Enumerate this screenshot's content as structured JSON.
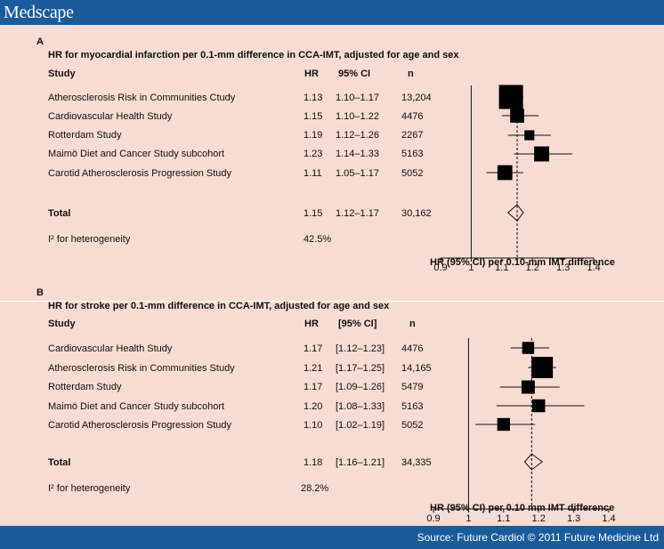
{
  "header": {
    "logo": "Medscape"
  },
  "footer": {
    "source": "Source: Future Cardiol © 2011 Future Medicine Ltd"
  },
  "chart_data": [
    {
      "type": "forest",
      "panel": "A",
      "title": "HR for myocardial infarction per 0.1-mm difference in CCA-IMT, adjusted for age and sex",
      "columns": {
        "study": "Study",
        "hr": "HR",
        "ci": "95% CI",
        "n": "n"
      },
      "studies": [
        {
          "name": "Atherosclerosis Risk in Communities Ctudy",
          "hr": 1.13,
          "lo": 1.1,
          "hi": 1.17,
          "hr_text": "1.13",
          "ci_text": "1.10–1.17",
          "n": "13,204",
          "n_value": 13204
        },
        {
          "name": "Cardiovascular Health Study",
          "hr": 1.15,
          "lo": 1.1,
          "hi": 1.22,
          "hr_text": "1.15",
          "ci_text": "1.10–1.22",
          "n": "4476",
          "n_value": 4476
        },
        {
          "name": "Rotterdam Study",
          "hr": 1.19,
          "lo": 1.12,
          "hi": 1.26,
          "hr_text": "1.19",
          "ci_text": "1.12–1.26",
          "n": "2267",
          "n_value": 2267
        },
        {
          "name": "Maimö Diet and Cancer Study subcohort",
          "hr": 1.23,
          "lo": 1.14,
          "hi": 1.33,
          "hr_text": "1.23",
          "ci_text": "1.14–1.33",
          "n": "5163",
          "n_value": 5163
        },
        {
          "name": "Carotid Atherosclerosis Progression Study",
          "hr": 1.11,
          "lo": 1.05,
          "hi": 1.17,
          "hr_text": "1.11",
          "ci_text": "1.05–1.17",
          "n": "5052",
          "n_value": 5052
        }
      ],
      "total": {
        "name": "Total",
        "hr": 1.15,
        "lo": 1.12,
        "hi": 1.17,
        "hr_text": "1.15",
        "ci_text": "1.12–1.17",
        "n": "30,162"
      },
      "heterogeneity": {
        "label": "I² for heterogeneity",
        "value": "42.5%"
      },
      "xlabel": "HR (95% CI) per 0.10-mm IMT difference",
      "xlim": [
        0.9,
        1.4
      ],
      "xticks": [
        "0.9",
        "1",
        "1.1",
        "1.2",
        "1.3",
        "1.4"
      ],
      "reference": 1.0
    },
    {
      "type": "forest",
      "panel": "B",
      "title": "HR for stroke per 0.1-mm difference in CCA-IMT, adjusted for age and sex",
      "columns": {
        "study": "Study",
        "hr": "HR",
        "ci": "[95% CI]",
        "n": "n"
      },
      "studies": [
        {
          "name": "Cardiovascular Health Study",
          "hr": 1.17,
          "lo": 1.12,
          "hi": 1.23,
          "hr_text": "1.17",
          "ci_text": "[1.12–1.23]",
          "n": "4476",
          "n_value": 4476
        },
        {
          "name": "Atherosclerosis Risk in Communities Study",
          "hr": 1.21,
          "lo": 1.17,
          "hi": 1.25,
          "hr_text": "1.21",
          "ci_text": "[1.17–1.25]",
          "n": "14,165",
          "n_value": 14165
        },
        {
          "name": "Rotterdam Study",
          "hr": 1.17,
          "lo": 1.09,
          "hi": 1.26,
          "hr_text": "1.17",
          "ci_text": "[1.09–1.26]",
          "n": "5479",
          "n_value": 5479
        },
        {
          "name": "Maimö Diet and Cancer Study subcohort",
          "hr": 1.2,
          "lo": 1.08,
          "hi": 1.33,
          "hr_text": "1.20",
          "ci_text": "[1.08–1.33]",
          "n": "5163",
          "n_value": 5163
        },
        {
          "name": "Carotid Atherosclerosis Progression Study",
          "hr": 1.1,
          "lo": 1.02,
          "hi": 1.19,
          "hr_text": "1.10",
          "ci_text": "[1.02–1.19]",
          "n": "5052",
          "n_value": 5052
        }
      ],
      "total": {
        "name": "Total",
        "hr": 1.18,
        "lo": 1.16,
        "hi": 1.21,
        "hr_text": "1.18",
        "ci_text": "[1.16–1.21]",
        "n": "34,335"
      },
      "heterogeneity": {
        "label": "I² for heterogeneity",
        "value": "28.2%"
      },
      "xlabel": "HR (95% CI) per 0.10 mm IMT difference",
      "xlim": [
        0.9,
        1.4
      ],
      "xticks": [
        "0.9",
        "1",
        "1.1",
        "1.2",
        "1.3",
        "1.4"
      ],
      "reference": 1.0
    }
  ]
}
